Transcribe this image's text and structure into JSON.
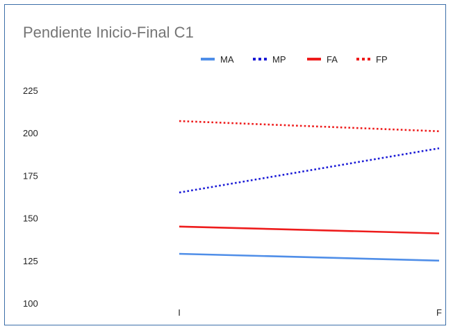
{
  "chart_data": {
    "type": "line",
    "title": "Pendiente Inicio-Final C1",
    "xlabel": "",
    "ylabel": "",
    "categories": [
      "I",
      "F"
    ],
    "ylim": [
      100,
      225
    ],
    "yticks": [
      "225",
      "200",
      "175",
      "150",
      "125",
      "100"
    ],
    "grid": false,
    "legend_position": "top",
    "series": [
      {
        "name": "MA",
        "values": [
          129,
          125
        ],
        "color": "#4f8ee8",
        "style": "solid"
      },
      {
        "name": "MP",
        "values": [
          165,
          191
        ],
        "color": "#1a1ad6",
        "style": "dotted"
      },
      {
        "name": "FA",
        "values": [
          145,
          141
        ],
        "color": "#ee1c1c",
        "style": "solid"
      },
      {
        "name": "FP",
        "values": [
          207,
          201
        ],
        "color": "#ee1c1c",
        "style": "dotted"
      }
    ]
  }
}
